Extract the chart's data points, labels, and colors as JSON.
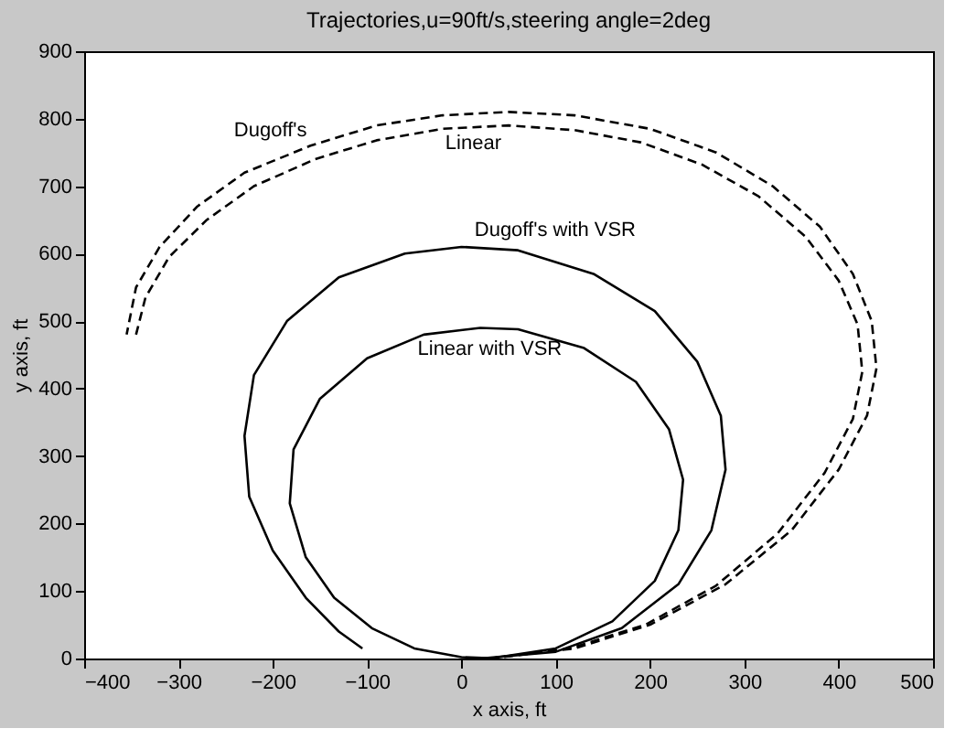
{
  "chart_data": {
    "type": "line",
    "title": "Trajectories,u=90ft/s,steering angle=2deg",
    "xlabel": "x axis, ft",
    "ylabel": "y axis, ft",
    "xlim": [
      -400,
      500
    ],
    "xticks": [
      -400,
      -300,
      -200,
      -100,
      0,
      100,
      200,
      300,
      400,
      500
    ],
    "ylim": [
      0,
      900
    ],
    "yticks": [
      0,
      100,
      200,
      300,
      400,
      500,
      600,
      700,
      800,
      900
    ],
    "grid": false,
    "marker": "none",
    "series": [
      {
        "color": "#000000",
        "line_style": "dashed",
        "x": [
          30,
          120,
          200,
          280,
          350,
          400,
          430,
          440,
          435,
          415,
          380,
          330,
          270,
          200,
          120,
          50,
          -20,
          -90,
          -160,
          -230,
          -280,
          -320,
          -345,
          -355
        ],
        "values": [
          0,
          15,
          50,
          110,
          190,
          280,
          360,
          430,
          500,
          570,
          640,
          700,
          750,
          785,
          805,
          810,
          805,
          790,
          760,
          720,
          670,
          610,
          550,
          480
        ]
      },
      {
        "color": "#000000",
        "line_style": "dashed",
        "x": [
          30,
          115,
          195,
          270,
          335,
          385,
          415,
          425,
          420,
          400,
          365,
          315,
          255,
          190,
          120,
          50,
          -20,
          -90,
          -155,
          -220,
          -270,
          -310,
          -335,
          -345
        ],
        "values": [
          0,
          15,
          50,
          108,
          185,
          275,
          355,
          425,
          495,
          560,
          625,
          685,
          732,
          765,
          783,
          790,
          785,
          768,
          740,
          700,
          650,
          595,
          535,
          480
        ]
      },
      {
        "color": "#000000",
        "line_style": "solid",
        "x": [
          20,
          100,
          170,
          230,
          265,
          280,
          275,
          250,
          205,
          140,
          60,
          0,
          -60,
          -130,
          -185,
          -220,
          -230,
          -225,
          -200,
          -165,
          -130,
          -105
        ],
        "values": [
          0,
          10,
          45,
          110,
          190,
          280,
          360,
          440,
          515,
          570,
          605,
          610,
          600,
          565,
          500,
          420,
          330,
          240,
          160,
          90,
          40,
          15
        ]
      },
      {
        "color": "#000000",
        "line_style": "solid",
        "x": [
          30,
          100,
          160,
          205,
          230,
          235,
          220,
          185,
          130,
          60,
          20,
          -40,
          -100,
          -150,
          -178,
          -182,
          -165,
          -135,
          -95,
          -50,
          0,
          40
        ],
        "values": [
          0,
          15,
          55,
          115,
          190,
          265,
          340,
          410,
          460,
          488,
          490,
          480,
          445,
          385,
          310,
          230,
          150,
          90,
          45,
          15,
          2,
          0
        ]
      }
    ],
    "annotations": [
      {
        "text": "Dugoff's",
        "x": -160,
        "y": 760
      },
      {
        "text": "Linear",
        "x": 50,
        "y": 790
      },
      {
        "text": "Dugoff's with VSR",
        "x": 10,
        "y": 610
      },
      {
        "text": "Linear with VSR",
        "x": 30,
        "y": 490
      }
    ]
  }
}
